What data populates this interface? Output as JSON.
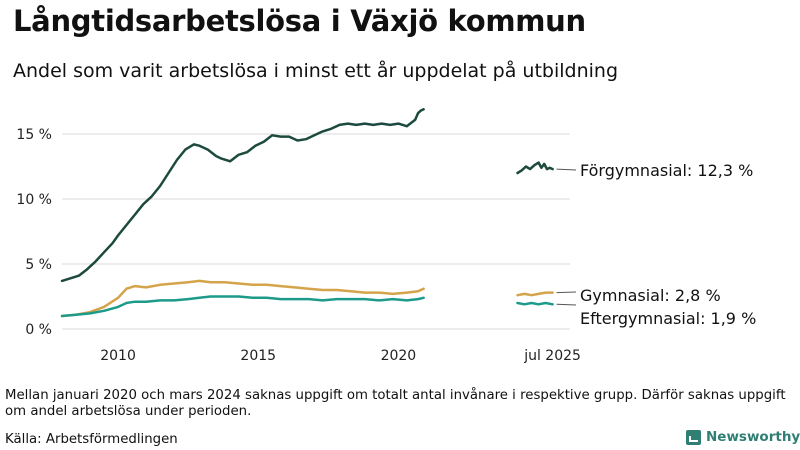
{
  "title": "Långtidsarbetslösa i Växjö kommun",
  "subtitle": "Andel som varit arbetslösa i minst ett år uppdelat på utbildning",
  "note": "Mellan januari 2020 och mars 2024 saknas uppgift om totalt antal invånare i respektive grupp. Därför saknas uppgift om andel arbetslösa under perioden.",
  "source": "Källa: Arbetsförmedlingen",
  "brand": "Newsworthy",
  "chart_data": {
    "type": "line",
    "y_ticks": [
      0,
      5,
      10,
      15
    ],
    "y_tick_labels": [
      "0 %",
      "5 %",
      "10 %",
      "15 %"
    ],
    "ylim": [
      0,
      17.5
    ],
    "x_ticks": [
      {
        "x": 2010,
        "label": "2010"
      },
      {
        "x": 2015,
        "label": "2015"
      },
      {
        "x": 2020,
        "label": "2020"
      },
      {
        "x": 2025.5,
        "label": "jul 2025"
      }
    ],
    "xlim": [
      2008.0,
      2026.3
    ],
    "grid": "horizontal",
    "series": [
      {
        "name": "Förgymnasial",
        "end_label": "Förgymnasial: 12,3 %",
        "color": "#1d4a3e",
        "x": [
          2008.0,
          2008.3,
          2008.6,
          2008.9,
          2009.2,
          2009.5,
          2009.8,
          2010.0,
          2010.3,
          2010.6,
          2010.9,
          2011.2,
          2011.5,
          2011.8,
          2012.1,
          2012.4,
          2012.7,
          2012.9,
          2013.2,
          2013.5,
          2013.7,
          2014.0,
          2014.3,
          2014.6,
          2014.9,
          2015.2,
          2015.5,
          2015.8,
          2016.1,
          2016.4,
          2016.7,
          2017.0,
          2017.3,
          2017.6,
          2017.9,
          2018.2,
          2018.5,
          2018.8,
          2019.1,
          2019.4,
          2019.7,
          2020.0,
          2020.3,
          2020.6,
          2020.7,
          2020.8,
          2020.9
        ],
        "values": [
          3.7,
          3.9,
          4.1,
          4.6,
          5.2,
          5.9,
          6.6,
          7.2,
          8.0,
          8.8,
          9.6,
          10.2,
          11.0,
          12.0,
          13.0,
          13.8,
          14.2,
          14.1,
          13.8,
          13.3,
          13.1,
          12.9,
          13.4,
          13.6,
          14.1,
          14.4,
          14.9,
          14.8,
          14.8,
          14.5,
          14.6,
          14.9,
          15.2,
          15.4,
          15.7,
          15.8,
          15.7,
          15.8,
          15.7,
          15.8,
          15.7,
          15.8,
          15.6,
          16.1,
          16.6,
          16.8,
          16.9
        ]
      },
      {
        "name": "Gymnasial",
        "end_label": "Gymnasial:  2,8 %",
        "color": "#d4a34a",
        "x": [
          2008.0,
          2008.5,
          2009.0,
          2009.5,
          2010.0,
          2010.3,
          2010.6,
          2011.0,
          2011.5,
          2012.0,
          2012.5,
          2012.9,
          2013.3,
          2013.8,
          2014.3,
          2014.8,
          2015.3,
          2015.8,
          2016.3,
          2016.8,
          2017.3,
          2017.8,
          2018.3,
          2018.8,
          2019.3,
          2019.8,
          2020.3,
          2020.7,
          2020.9
        ],
        "values": [
          1.0,
          1.1,
          1.3,
          1.7,
          2.4,
          3.1,
          3.3,
          3.2,
          3.4,
          3.5,
          3.6,
          3.7,
          3.6,
          3.6,
          3.5,
          3.4,
          3.4,
          3.3,
          3.2,
          3.1,
          3.0,
          3.0,
          2.9,
          2.8,
          2.8,
          2.7,
          2.8,
          2.9,
          3.1
        ]
      },
      {
        "name": "Eftergymnasial",
        "end_label": "Eftergymnasial:  1,9 %",
        "color": "#1e9a8a",
        "x": [
          2008.0,
          2008.5,
          2009.0,
          2009.5,
          2010.0,
          2010.3,
          2010.6,
          2011.0,
          2011.5,
          2012.0,
          2012.5,
          2012.9,
          2013.3,
          2013.8,
          2014.3,
          2014.8,
          2015.3,
          2015.8,
          2016.3,
          2016.8,
          2017.3,
          2017.8,
          2018.3,
          2018.8,
          2019.3,
          2019.8,
          2020.3,
          2020.7,
          2020.9
        ],
        "values": [
          1.0,
          1.1,
          1.2,
          1.4,
          1.7,
          2.0,
          2.1,
          2.1,
          2.2,
          2.2,
          2.3,
          2.4,
          2.5,
          2.5,
          2.5,
          2.4,
          2.4,
          2.3,
          2.3,
          2.3,
          2.2,
          2.3,
          2.3,
          2.3,
          2.2,
          2.3,
          2.2,
          2.3,
          2.4
        ]
      }
    ],
    "recent_series": [
      {
        "name": "Förgymnasial",
        "color": "#1d4a3e",
        "x": [
          2024.25,
          2024.4,
          2024.55,
          2024.7,
          2024.85,
          2025.0,
          2025.1,
          2025.2,
          2025.3,
          2025.4,
          2025.5
        ],
        "values": [
          12.0,
          12.2,
          12.5,
          12.3,
          12.6,
          12.8,
          12.4,
          12.7,
          12.3,
          12.4,
          12.3
        ]
      },
      {
        "name": "Gymnasial",
        "color": "#d4a34a",
        "x": [
          2024.25,
          2024.5,
          2024.75,
          2025.0,
          2025.25,
          2025.5
        ],
        "values": [
          2.6,
          2.7,
          2.6,
          2.7,
          2.8,
          2.8
        ]
      },
      {
        "name": "Eftergymnasial",
        "color": "#1e9a8a",
        "x": [
          2024.25,
          2024.5,
          2024.75,
          2025.0,
          2025.25,
          2025.5
        ],
        "values": [
          2.0,
          1.9,
          2.0,
          1.9,
          2.0,
          1.9
        ]
      }
    ]
  }
}
